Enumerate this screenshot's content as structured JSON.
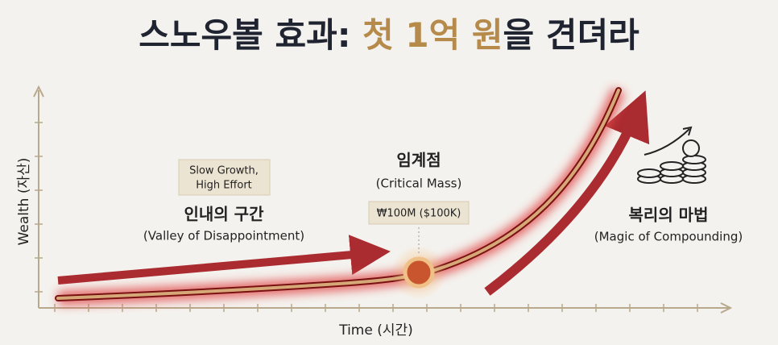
{
  "title": {
    "prefix": "스노우볼 효과:",
    "highlight": "첫 1억 원",
    "suffix": "을 견뎌라"
  },
  "axes": {
    "y_label": "Wealth (자산)",
    "x_label": "Time (시간)"
  },
  "annotations": {
    "slow_growth": [
      "Slow Growth,",
      "High Effort"
    ],
    "valley": {
      "title": "인내의 구간",
      "subtitle": "(Valley of Disappointment)"
    },
    "critical": {
      "title": "임계점",
      "subtitle": "(Critical Mass)",
      "badge": "₩100M ($100K)"
    },
    "magic": {
      "title": "복리의 마법",
      "subtitle": "(Magic of Compounding)"
    }
  }
}
